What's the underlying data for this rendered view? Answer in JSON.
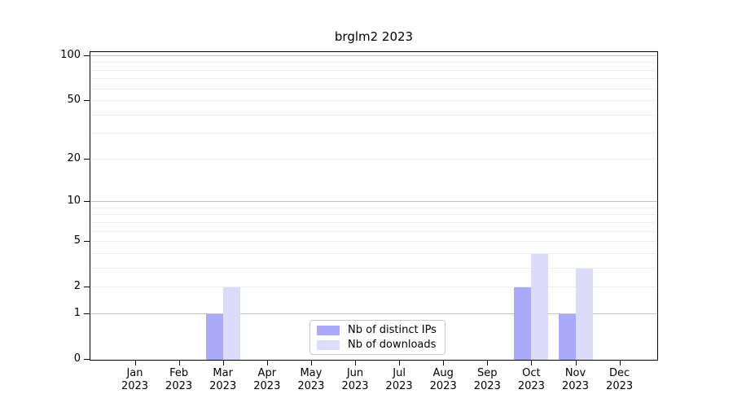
{
  "chart_data": {
    "type": "bar",
    "title": "brglm2 2023",
    "categories": [
      "Jan",
      "Feb",
      "Mar",
      "Apr",
      "May",
      "Jun",
      "Jul",
      "Aug",
      "Sep",
      "Oct",
      "Nov",
      "Dec"
    ],
    "category_year_suffix": "2023",
    "series": [
      {
        "name": "Nb of distinct IPs",
        "color": "#aaaaf8",
        "values": [
          0,
          0,
          1,
          0,
          0,
          0,
          0,
          0,
          0,
          2,
          1,
          0
        ]
      },
      {
        "name": "Nb of downloads",
        "color": "#dcdcfa",
        "values": [
          0,
          0,
          2,
          0,
          0,
          0,
          0,
          0,
          0,
          4,
          3,
          0
        ]
      }
    ],
    "y_axis": {
      "scale": "log10(1+x)",
      "tick_values": [
        0,
        1,
        2,
        5,
        10,
        20,
        50,
        100
      ],
      "major_grid_values": [
        1,
        10,
        100
      ],
      "minor_grid_values": [
        2,
        3,
        4,
        5,
        6,
        7,
        8,
        9,
        20,
        30,
        40,
        50,
        60,
        70,
        80,
        90
      ],
      "min": 0,
      "max": 110
    },
    "legend": {
      "position": "lower-center-inside"
    },
    "colors": {
      "major_grid": "#c3c3c3",
      "minor_grid": "#ededed",
      "axis": "#000000",
      "legend_border": "#c9c9c9",
      "background": "#ffffff"
    }
  }
}
